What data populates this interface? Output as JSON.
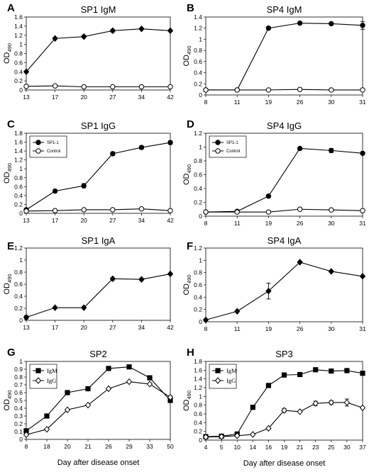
{
  "figure": {
    "shared_xlabel": "Day after disease onset"
  },
  "chart_data": [
    {
      "id": "A",
      "letter": "A",
      "type": "line",
      "title": "SP1 IgM",
      "ylabel": "OD",
      "ylabel_sub": "490",
      "xlabel": "",
      "categories": [
        "13",
        "17",
        "20",
        "27",
        "34",
        "42"
      ],
      "ylim": [
        0,
        1.6
      ],
      "yticks": [
        0,
        0.2,
        0.4,
        0.6,
        0.8,
        1,
        1.2,
        1.4,
        1.6
      ],
      "grid": false,
      "series": [
        {
          "marker": "filled-diamond",
          "values": [
            0.4,
            1.13,
            1.17,
            1.3,
            1.34,
            1.3
          ],
          "errors": [
            0,
            0.02,
            0.03,
            0.03,
            0.02,
            0.02
          ]
        },
        {
          "marker": "open-circle",
          "values": [
            0.08,
            0.09,
            0.07,
            0.07,
            0.07,
            0.07
          ],
          "errors": [
            0,
            0,
            0,
            0,
            0,
            0
          ]
        }
      ]
    },
    {
      "id": "B",
      "letter": "B",
      "type": "line",
      "title": "SP4 IgM",
      "ylabel": "OD",
      "ylabel_sub": "490",
      "xlabel": "",
      "categories": [
        "8",
        "11",
        "19",
        "26",
        "30",
        "31"
      ],
      "ylim": [
        0,
        1.4
      ],
      "yticks": [
        0,
        0.2,
        0.4,
        0.6,
        0.8,
        1,
        1.2,
        1.4
      ],
      "grid": false,
      "series": [
        {
          "marker": "filled-circle",
          "values": [
            0.09,
            0.09,
            1.2,
            1.29,
            1.28,
            1.25
          ],
          "errors": [
            0,
            0,
            0.03,
            0.01,
            0.01,
            0.07
          ]
        },
        {
          "marker": "open-circle",
          "values": [
            0.09,
            0.09,
            0.09,
            0.1,
            0.09,
            0.09
          ],
          "errors": [
            0,
            0,
            0,
            0,
            0,
            0
          ]
        }
      ]
    },
    {
      "id": "C",
      "letter": "C",
      "type": "line",
      "title": "SP1 IgG",
      "ylabel": "OD",
      "ylabel_sub": "490",
      "xlabel": "",
      "categories": [
        "13",
        "17",
        "20",
        "27",
        "34",
        "42"
      ],
      "ylim": [
        0,
        1.8
      ],
      "yticks": [
        0,
        0.2,
        0.4,
        0.6,
        0.8,
        1,
        1.2,
        1.4,
        1.6,
        1.8
      ],
      "grid": false,
      "legend_position": "top-left",
      "legend_style": "sans",
      "series": [
        {
          "name": "SP1-1",
          "marker": "filled-circle",
          "values": [
            0.08,
            0.5,
            0.62,
            1.34,
            1.48,
            1.59
          ],
          "errors": [
            0.02,
            0.02,
            0.05,
            0.04,
            0.04,
            0.04
          ]
        },
        {
          "name": "Control",
          "marker": "open-circle",
          "values": [
            0.05,
            0.06,
            0.08,
            0.08,
            0.1,
            0.06
          ],
          "errors": [
            0,
            0,
            0,
            0,
            0,
            0
          ]
        }
      ]
    },
    {
      "id": "D",
      "letter": "D",
      "type": "line",
      "title": "SP4 IgG",
      "ylabel": "OD",
      "ylabel_sub": "490",
      "xlabel": "",
      "categories": [
        "8",
        "11",
        "19",
        "26",
        "30",
        "31"
      ],
      "ylim": [
        0,
        1.2
      ],
      "yticks": [
        0,
        0.2,
        0.4,
        0.6,
        0.8,
        1,
        1.2
      ],
      "grid": false,
      "legend_position": "top-left",
      "legend_style": "sans",
      "series": [
        {
          "name": "SP1-1",
          "marker": "filled-circle",
          "values": [
            0.06,
            0.07,
            0.29,
            0.98,
            0.95,
            0.91
          ],
          "errors": [
            0,
            0,
            0.02,
            0.02,
            0.03,
            0
          ]
        },
        {
          "name": "Control",
          "marker": "open-circle",
          "values": [
            0.06,
            0.06,
            0.06,
            0.1,
            0.09,
            0.08
          ],
          "errors": [
            0,
            0,
            0,
            0,
            0,
            0
          ]
        }
      ]
    },
    {
      "id": "E",
      "letter": "E",
      "type": "line",
      "title": "SP1 IgA",
      "ylabel": "OD",
      "ylabel_sub": "490",
      "xlabel": "",
      "categories": [
        "13",
        "17",
        "20",
        "27",
        "34",
        "42"
      ],
      "ylim": [
        0,
        1.2
      ],
      "yticks": [
        0,
        0.2,
        0.4,
        0.6,
        0.8,
        1,
        1.2
      ],
      "grid": false,
      "series": [
        {
          "marker": "filled-diamond",
          "values": [
            0.05,
            0.21,
            0.21,
            0.69,
            0.68,
            0.77
          ],
          "errors": [
            0.03,
            0.01,
            0,
            0.02,
            0.02,
            0
          ]
        }
      ]
    },
    {
      "id": "F",
      "letter": "F",
      "type": "line",
      "title": "SP4 IgA",
      "ylabel": "OD",
      "ylabel_sub": "490",
      "xlabel": "",
      "categories": [
        "8",
        "11",
        "19",
        "26",
        "30",
        "31"
      ],
      "ylim": [
        0,
        1.2
      ],
      "yticks": [
        0,
        0.2,
        0.4,
        0.6,
        0.8,
        1,
        1.2
      ],
      "grid": false,
      "series": [
        {
          "marker": "filled-diamond",
          "values": [
            0.03,
            0.17,
            0.5,
            0.97,
            0.82,
            0.74
          ],
          "errors": [
            0,
            0,
            0.13,
            0,
            0.01,
            0
          ]
        }
      ]
    },
    {
      "id": "G",
      "letter": "G",
      "type": "line",
      "title": "SP2",
      "ylabel": "OD",
      "ylabel_sub": "490",
      "xlabel": "Day after disease onset",
      "categories": [
        "8",
        "18",
        "20",
        "21",
        "26",
        "29",
        "33",
        "50"
      ],
      "ylim": [
        0,
        1.0
      ],
      "yticks": [
        0,
        0.1,
        0.2,
        0.3,
        0.4,
        0.5,
        0.6,
        0.7,
        0.8,
        0.9,
        1
      ],
      "grid": false,
      "legend_position": "top-left",
      "legend_style": "serif",
      "series": [
        {
          "name": "IgM",
          "marker": "filled-square",
          "values": [
            0.11,
            0.3,
            0.6,
            0.65,
            0.91,
            0.93,
            0.79,
            0.5
          ],
          "errors": [
            0.01,
            0.02,
            0.02,
            0.01,
            0.01,
            0.01,
            0.02,
            0.02
          ]
        },
        {
          "name": "IgG",
          "marker": "open-diamond",
          "values": [
            0.06,
            0.13,
            0.38,
            0.44,
            0.65,
            0.74,
            0.71,
            0.54
          ],
          "errors": [
            0,
            0,
            0.01,
            0.01,
            0.01,
            0.01,
            0.01,
            0.02
          ]
        }
      ]
    },
    {
      "id": "H",
      "letter": "H",
      "type": "line",
      "title": "SP3",
      "ylabel": "OD",
      "ylabel_sub": "490",
      "xlabel": "Day after disease onset",
      "categories": [
        "4",
        "5",
        "10",
        "14",
        "16",
        "19",
        "21",
        "23",
        "25",
        "30",
        "37"
      ],
      "ylim": [
        0,
        1.8
      ],
      "yticks": [
        0,
        0.2,
        0.4,
        0.6,
        0.8,
        1,
        1.2,
        1.4,
        1.6,
        1.8
      ],
      "grid": false,
      "legend_position": "top-left",
      "legend_style": "serif",
      "series": [
        {
          "name": "IgM",
          "marker": "filled-square",
          "values": [
            0.08,
            0.09,
            0.14,
            0.75,
            1.25,
            1.49,
            1.5,
            1.61,
            1.58,
            1.59,
            1.53
          ],
          "errors": [
            0.01,
            0.01,
            0.02,
            0.03,
            0.03,
            0.05,
            0.04,
            0.04,
            0.03,
            0.03,
            0.03
          ]
        },
        {
          "name": "IgG",
          "marker": "open-diamond",
          "values": [
            0.07,
            0.08,
            0.1,
            0.13,
            0.27,
            0.68,
            0.65,
            0.84,
            0.86,
            0.86,
            0.74
          ],
          "errors": [
            0,
            0,
            0,
            0.01,
            0.02,
            0.04,
            0.02,
            0.05,
            0.04,
            0.08,
            0.02
          ]
        }
      ]
    }
  ]
}
